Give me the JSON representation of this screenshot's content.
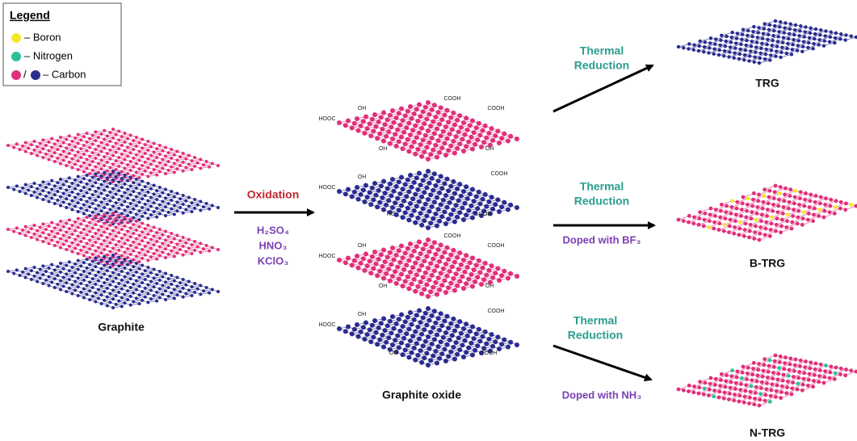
{
  "legend": {
    "title": "Legend",
    "items": [
      {
        "label": "– Boron"
      },
      {
        "label": "– Nitrogen"
      },
      {
        "prefix": "/",
        "label": "– Carbon"
      }
    ]
  },
  "graphite": {
    "label": "Graphite"
  },
  "oxidation": {
    "label": "Oxidation",
    "reagents": [
      "H₂SO₄",
      "HNO₃",
      "KClO₃"
    ]
  },
  "graphite_oxide": {
    "label": "Graphite oxide",
    "groups": [
      [
        "OH",
        "COOH",
        "HOOC",
        "COOH",
        "OH",
        "OH"
      ],
      [
        "OH",
        "COOH",
        "HOOC",
        "HO",
        "COOH"
      ],
      [
        "OH",
        "COOH",
        "HOOC",
        "COOH",
        "OH",
        "OH"
      ],
      [
        "OH",
        "COOH",
        "HOOC",
        "OH",
        "COOH"
      ]
    ]
  },
  "steps": [
    {
      "reduction": [
        "Thermal",
        "Reduction"
      ],
      "product": "TRG"
    },
    {
      "reduction": [
        "Thermal",
        "Reduction"
      ],
      "doping": "Doped with BF₃",
      "product": "B-TRG"
    },
    {
      "reduction": [
        "Thermal",
        "Reduction"
      ],
      "doping": "Doped with NH₃",
      "product": "N-TRG"
    }
  ]
}
